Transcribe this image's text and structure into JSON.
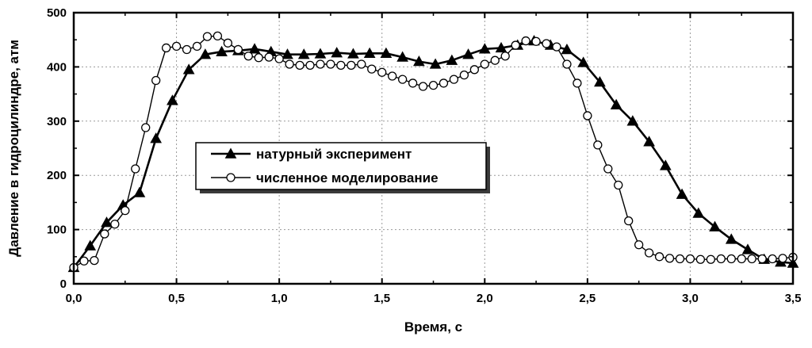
{
  "chart_data": {
    "type": "line",
    "title": "",
    "xlabel": "Время, с",
    "ylabel": "Давление в гидроцилиндре, атм",
    "xlim": [
      0.0,
      3.5
    ],
    "ylim": [
      0,
      500
    ],
    "x_ticks": [
      0.0,
      0.5,
      1.0,
      1.5,
      2.0,
      2.5,
      3.0,
      3.5
    ],
    "x_tick_labels": [
      "0,0",
      "0,5",
      "1,0",
      "1,5",
      "2,0",
      "2,5",
      "3,0",
      "3,5"
    ],
    "y_ticks": [
      0,
      100,
      200,
      300,
      400,
      500
    ],
    "y_tick_labels": [
      "0",
      "100",
      "200",
      "300",
      "400",
      "500"
    ],
    "grid": true,
    "legend_position": "center-left",
    "series": [
      {
        "name": "натурный эксперимент",
        "marker": "filled-triangle",
        "color": "#000000",
        "x": [
          0.0,
          0.08,
          0.16,
          0.24,
          0.32,
          0.4,
          0.48,
          0.56,
          0.64,
          0.72,
          0.8,
          0.88,
          0.96,
          1.04,
          1.12,
          1.2,
          1.28,
          1.36,
          1.44,
          1.52,
          1.6,
          1.68,
          1.76,
          1.84,
          1.92,
          2.0,
          2.08,
          2.16,
          2.24,
          2.32,
          2.4,
          2.48,
          2.56,
          2.64,
          2.72,
          2.8,
          2.88,
          2.96,
          3.04,
          3.12,
          3.2,
          3.28,
          3.36,
          3.44,
          3.5
        ],
        "y": [
          30,
          70,
          113,
          145,
          168,
          268,
          338,
          395,
          423,
          428,
          430,
          433,
          428,
          423,
          423,
          424,
          426,
          424,
          425,
          425,
          418,
          410,
          405,
          412,
          423,
          433,
          435,
          440,
          448,
          440,
          432,
          408,
          372,
          330,
          300,
          262,
          218,
          165,
          130,
          105,
          82,
          63,
          45,
          40,
          38
        ]
      },
      {
        "name": "численное моделирование",
        "marker": "open-circle",
        "color": "#000000",
        "x": [
          0.0,
          0.05,
          0.1,
          0.15,
          0.2,
          0.25,
          0.3,
          0.35,
          0.4,
          0.45,
          0.5,
          0.55,
          0.6,
          0.65,
          0.7,
          0.75,
          0.8,
          0.85,
          0.9,
          0.95,
          1.0,
          1.05,
          1.1,
          1.15,
          1.2,
          1.25,
          1.3,
          1.35,
          1.4,
          1.45,
          1.5,
          1.55,
          1.6,
          1.65,
          1.7,
          1.75,
          1.8,
          1.85,
          1.9,
          1.95,
          2.0,
          2.05,
          2.1,
          2.15,
          2.2,
          2.25,
          2.3,
          2.35,
          2.4,
          2.45,
          2.5,
          2.55,
          2.6,
          2.65,
          2.7,
          2.75,
          2.8,
          2.85,
          2.9,
          2.95,
          3.0,
          3.05,
          3.1,
          3.15,
          3.2,
          3.25,
          3.3,
          3.35,
          3.4,
          3.45,
          3.5
        ],
        "y": [
          30,
          42,
          43,
          92,
          110,
          135,
          212,
          288,
          375,
          435,
          438,
          432,
          438,
          456,
          457,
          444,
          432,
          420,
          417,
          418,
          415,
          405,
          403,
          403,
          405,
          405,
          403,
          403,
          405,
          396,
          390,
          383,
          377,
          370,
          364,
          366,
          370,
          377,
          385,
          395,
          405,
          412,
          420,
          440,
          448,
          447,
          443,
          437,
          405,
          370,
          310,
          256,
          212,
          182,
          116,
          72,
          57,
          50,
          47,
          46,
          46,
          45,
          45,
          46,
          46,
          46,
          46,
          46,
          46,
          47,
          49
        ]
      }
    ]
  }
}
